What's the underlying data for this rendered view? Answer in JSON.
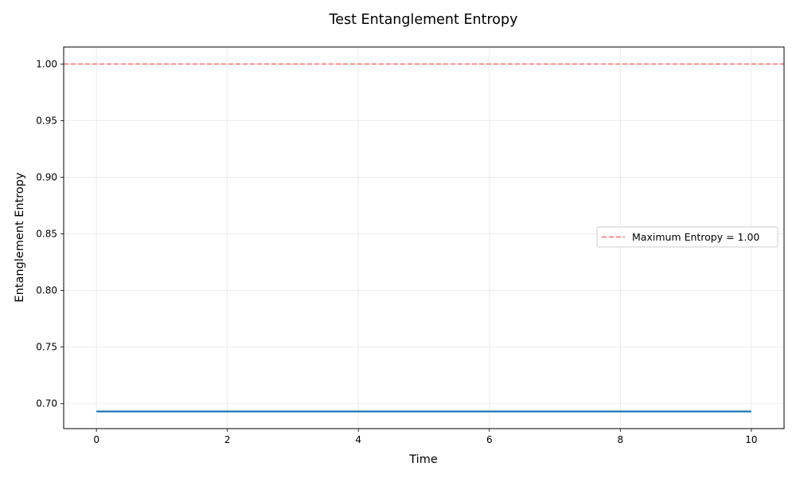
{
  "chart_data": {
    "type": "line",
    "title": "Test Entanglement Entropy",
    "xlabel": "Time",
    "ylabel": "Entanglement Entropy",
    "xlim": [
      -0.5,
      10.5
    ],
    "ylim": [
      0.678,
      1.015
    ],
    "x_ticks": [
      0,
      2,
      4,
      6,
      8,
      10
    ],
    "y_ticks": [
      0.7,
      0.75,
      0.8,
      0.85,
      0.9,
      0.95,
      1.0
    ],
    "x_tick_labels": [
      "0",
      "2",
      "4",
      "6",
      "8",
      "10"
    ],
    "y_tick_labels": [
      "0.70",
      "0.75",
      "0.80",
      "0.85",
      "0.90",
      "0.95",
      "1.00"
    ],
    "grid": true,
    "series": [
      {
        "color": "#1f77b4",
        "style": "solid",
        "x": [
          0,
          10
        ],
        "y": [
          0.6931,
          0.6931
        ]
      }
    ],
    "reference_lines": [
      {
        "name": "Maximum Entropy = 1.00",
        "orientation": "horizontal",
        "y": 1.0,
        "color": "#ff6b6b",
        "style": "dashed"
      }
    ],
    "legend": {
      "placement": "center-right",
      "entries": [
        "Maximum Entropy = 1.00"
      ]
    }
  }
}
